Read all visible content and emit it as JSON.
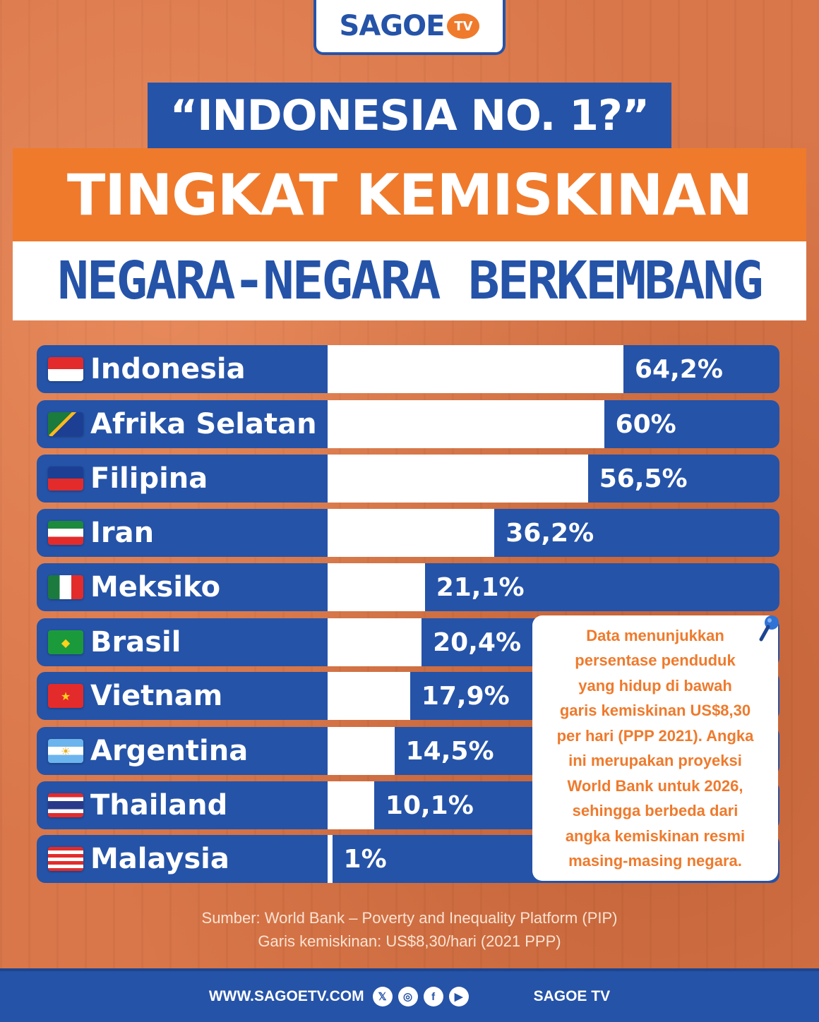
{
  "logo": {
    "text": "SAGOE",
    "badge": "TV"
  },
  "titles": {
    "line1": "“INDONESIA NO. 1?”",
    "line2": "TINGKAT KEMISKINAN",
    "line3": "NEGARA-NEGARA BERKEMBANG"
  },
  "chart_data": {
    "type": "bar",
    "orientation": "horizontal",
    "categories": [
      "Indonesia",
      "Afrika Selatan",
      "Filipina",
      "Iran",
      "Meksiko",
      "Brasil",
      "Vietnam",
      "Argentina",
      "Thailand",
      "Malaysia"
    ],
    "values": [
      64.2,
      60,
      56.5,
      36.2,
      21.1,
      20.4,
      17.9,
      14.5,
      10.1,
      1
    ],
    "value_labels": [
      "64,2%",
      "60%",
      "56,5%",
      "36,2%",
      "21,1%",
      "20,4%",
      "17,9%",
      "14,5%",
      "10,1%",
      "1%"
    ],
    "unit": "%",
    "xlim": [
      0,
      64.2
    ],
    "bar_color": "#ffffff",
    "row_color": "#2553a8"
  },
  "flags": [
    "indonesia-flag-icon",
    "south-africa-flag-icon",
    "philippines-flag-icon",
    "iran-flag-icon",
    "mexico-flag-icon",
    "brazil-flag-icon",
    "vietnam-flag-icon",
    "argentina-flag-icon",
    "thailand-flag-icon",
    "malaysia-flag-icon"
  ],
  "note": {
    "lines": [
      "Data menunjukkan",
      "persentase penduduk",
      "yang hidup di bawah",
      "garis kemiskinan US$8,30",
      "per hari (PPP 2021). Angka",
      "ini merupakan proyeksi",
      "World Bank untuk 2026,",
      "sehingga berbeda dari",
      "angka kemiskinan resmi",
      "masing-masing negara."
    ]
  },
  "source": {
    "line1": "Sumber: World Bank – Poverty and Inequality Platform (PIP)",
    "line2": "Garis kemiskinan: US$8,30/hari (2021 PPP)"
  },
  "footer": {
    "url": "WWW.SAGOETV.COM",
    "handle": "SAGOE TV",
    "social_icons": [
      "x-icon",
      "instagram-icon",
      "facebook-icon",
      "youtube-icon"
    ]
  },
  "colors": {
    "brand_blue": "#2553a8",
    "brand_orange": "#ef7a2c",
    "background": "#d9774a"
  }
}
